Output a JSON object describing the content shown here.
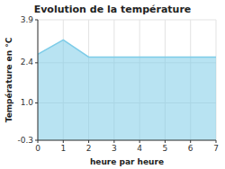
{
  "chart_data": {
    "type": "area",
    "title": "Evolution de la température",
    "xlabel": "heure par heure",
    "ylabel": "Température en °C",
    "x": [
      0,
      1,
      2,
      3,
      4,
      5,
      6,
      7
    ],
    "values": [
      2.7,
      3.2,
      2.6,
      2.6,
      2.6,
      2.6,
      2.6,
      2.6
    ],
    "xlim": [
      0,
      7
    ],
    "ylim": [
      -0.3,
      3.9
    ],
    "xticks": [
      0,
      1,
      2,
      3,
      4,
      5,
      6,
      7
    ],
    "yticks": [
      -0.3,
      {
        "value": 1.0,
        "label": "1.0"
      },
      2.4,
      3.9
    ],
    "grid": true,
    "color": "#7dcce8"
  }
}
